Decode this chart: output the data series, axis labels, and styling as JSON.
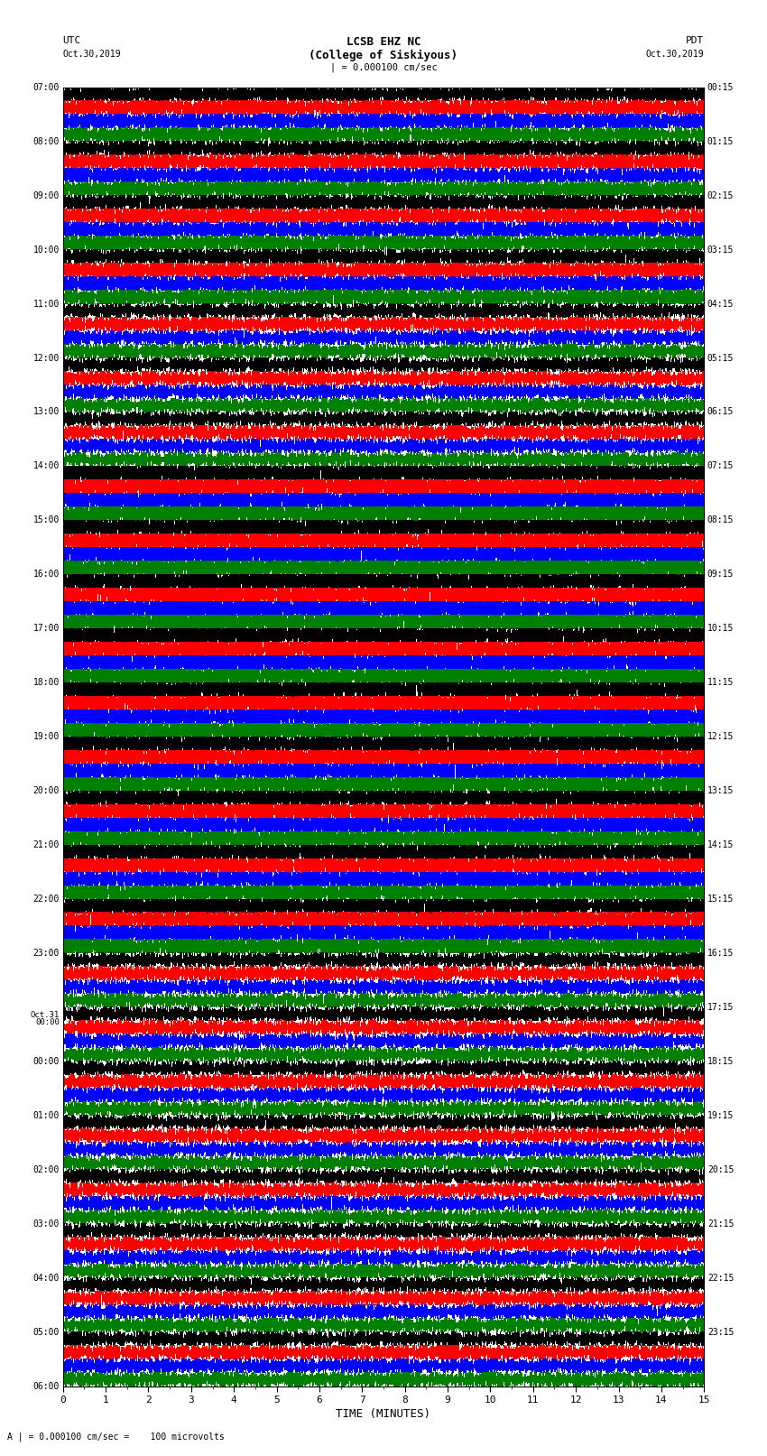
{
  "title_line1": "LCSB EHZ NC",
  "title_line2": "(College of Siskiyous)",
  "scale_label": "| = 0.000100 cm/sec",
  "left_header": "UTC",
  "left_subheader": "Oct.30,2019",
  "right_header": "PDT",
  "right_subheader": "Oct.30,2019",
  "xlabel": "TIME (MINUTES)",
  "footer": "A | = 0.000100 cm/sec =    100 microvolts",
  "trace_colors": [
    "black",
    "red",
    "blue",
    "green"
  ],
  "xmin": 0,
  "xmax": 15,
  "fig_width": 8.5,
  "fig_height": 16.13,
  "bg_color": "white",
  "trace_lw": 0.25,
  "left_utc_times": [
    "07:00",
    "08:00",
    "09:00",
    "10:00",
    "11:00",
    "12:00",
    "13:00",
    "14:00",
    "15:00",
    "16:00",
    "17:00",
    "18:00",
    "19:00",
    "20:00",
    "21:00",
    "22:00",
    "23:00",
    "Oct.31",
    "00:00",
    "01:00",
    "02:00",
    "03:00",
    "04:00",
    "05:00",
    "06:00"
  ],
  "right_pdt_times": [
    "00:15",
    "01:15",
    "02:15",
    "03:15",
    "04:15",
    "05:15",
    "06:15",
    "07:15",
    "08:15",
    "09:15",
    "10:15",
    "11:15",
    "12:15",
    "13:15",
    "14:15",
    "15:15",
    "16:15",
    "17:15",
    "18:15",
    "19:15",
    "20:15",
    "21:15",
    "22:15",
    "23:15"
  ],
  "num_hour_groups": 24,
  "traces_per_hour": 4,
  "samples_per_row": 3000
}
